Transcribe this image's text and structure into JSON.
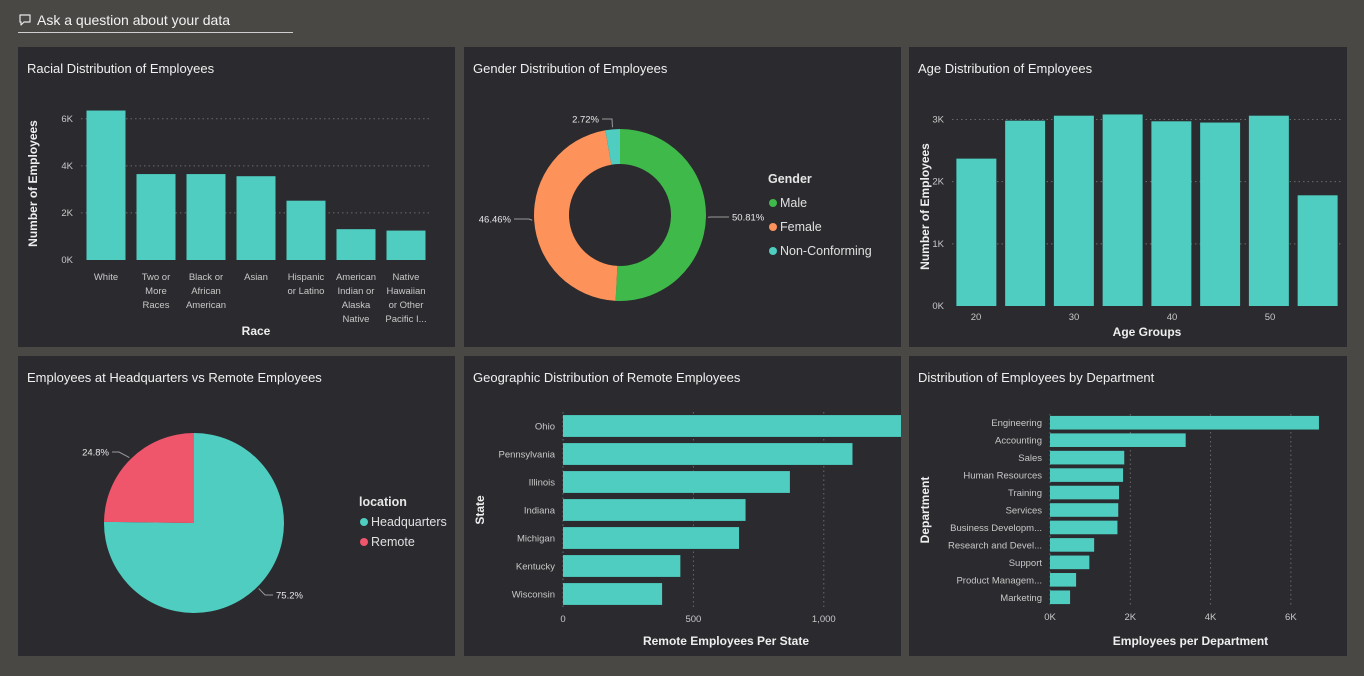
{
  "qa": {
    "placeholder": "Ask a question about your data"
  },
  "colors": {
    "teal": "#4ecdc0",
    "green": "#3fb94a",
    "orange": "#fd925a",
    "red": "#f0566b"
  },
  "panels": {
    "race": {
      "title": "Racial Distribution of Employees"
    },
    "gender": {
      "title": "Gender Distribution of Employees"
    },
    "age": {
      "title": "Age Distribution of Employees"
    },
    "location": {
      "title": "Employees at Headquarters vs Remote Employees"
    },
    "geo": {
      "title": "Geographic Distribution of Remote Employees"
    },
    "dept": {
      "title": "Distribution of Employees by Department"
    }
  },
  "chart_data": [
    {
      "id": "race",
      "type": "bar",
      "title": "Racial Distribution of Employees",
      "xlabel": "Race",
      "ylabel": "Number of Employees",
      "ylim": [
        0,
        6500
      ],
      "yticks": [
        "0K",
        "2K",
        "4K",
        "6K"
      ],
      "categories": [
        [
          "White"
        ],
        [
          "Two or",
          "More",
          "Races"
        ],
        [
          "Black or",
          "African",
          "American"
        ],
        [
          "Asian"
        ],
        [
          "Hispanic",
          "or Latino"
        ],
        [
          "American",
          "Indian or",
          "Alaska",
          "Native"
        ],
        [
          "Native",
          "Hawaiian",
          "or Other",
          "Pacific I..."
        ]
      ],
      "values": [
        6350,
        3650,
        3650,
        3560,
        2520,
        1310,
        1250
      ],
      "grid": true
    },
    {
      "id": "gender",
      "type": "pie",
      "donut": true,
      "title": "Gender Distribution of Employees",
      "legend_title": "Gender",
      "legend_position": "right",
      "labels": [
        "Male",
        "Female",
        "Non-Conforming"
      ],
      "values": [
        50.81,
        46.46,
        2.72
      ],
      "value_labels": [
        "50.81%",
        "46.46%",
        "2.72%"
      ],
      "colors": [
        "#3fb94a",
        "#fd925a",
        "#4ecdc0"
      ]
    },
    {
      "id": "age",
      "type": "bar",
      "title": "Age Distribution of Employees",
      "xlabel": "Age Groups",
      "ylabel": "Number of Employees",
      "ylim": [
        0,
        3200
      ],
      "yticks": [
        "0K",
        "1K",
        "2K",
        "3K"
      ],
      "xticks": [
        "20",
        "30",
        "40",
        "50"
      ],
      "values": [
        2370,
        2980,
        3060,
        3080,
        2970,
        2950,
        3060,
        1780
      ],
      "grid": true
    },
    {
      "id": "location",
      "type": "pie",
      "title": "Employees at Headquarters vs Remote Employees",
      "legend_title": "location",
      "legend_position": "right",
      "labels": [
        "Headquarters",
        "Remote"
      ],
      "values": [
        75.2,
        24.8
      ],
      "value_labels": [
        "75.2%",
        "24.8%"
      ],
      "colors": [
        "#4ecdc0",
        "#f0566b"
      ]
    },
    {
      "id": "geo",
      "type": "bar",
      "orientation": "horizontal",
      "title": "Geographic Distribution of Remote Employees",
      "xlabel": "Remote Employees Per State",
      "ylabel": "State",
      "xlim": [
        0,
        1250
      ],
      "xticks": [
        "0",
        "500",
        "1,000"
      ],
      "categories": [
        "Ohio",
        "Pennsylvania",
        "Illinois",
        "Indiana",
        "Michigan",
        "Kentucky",
        "Wisconsin"
      ],
      "values": [
        1310,
        1110,
        870,
        700,
        675,
        450,
        380
      ],
      "grid": true
    },
    {
      "id": "dept",
      "type": "bar",
      "orientation": "horizontal",
      "title": "Distribution of Employees by Department",
      "xlabel": "Employees per Department",
      "ylabel": "Department",
      "xlim": [
        0,
        7000
      ],
      "xticks": [
        "0K",
        "2K",
        "4K",
        "6K"
      ],
      "categories": [
        "Engineering",
        "Accounting",
        "Sales",
        "Human Resources",
        "Training",
        "Services",
        "Business Developm...",
        "Research and Devel...",
        "Support",
        "Product Managem...",
        "Marketing"
      ],
      "values": [
        6700,
        3380,
        1850,
        1820,
        1720,
        1700,
        1680,
        1100,
        980,
        650,
        500
      ],
      "grid": true
    }
  ]
}
